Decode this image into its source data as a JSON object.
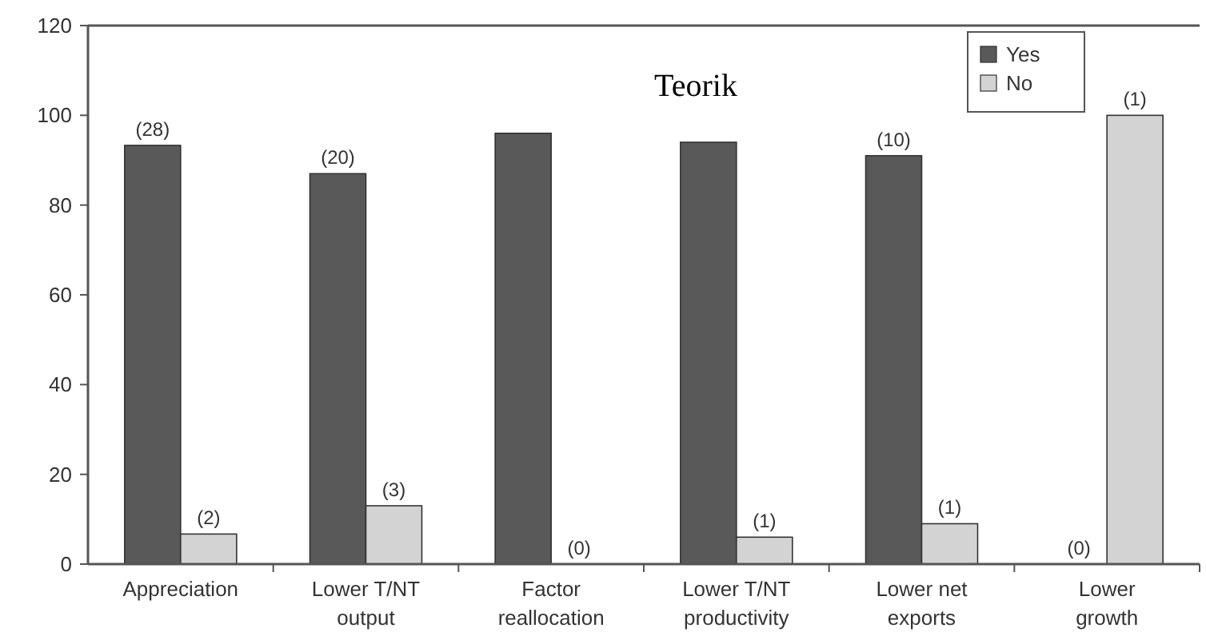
{
  "chart_data": {
    "type": "bar",
    "annotations": [
      "Teorik",
      {
        "text": "(28)",
        "x": "Appreciation",
        "y": 93.3
      },
      {
        "text": "(2)",
        "x": "Appreciation",
        "y": 6.7
      },
      {
        "text": "(20)",
        "x": "Lower T/NT output",
        "y": 87
      },
      {
        "text": "(3)",
        "x": "Lower T/NT output",
        "y": 13
      },
      {
        "text": "(0)",
        "x": "Factor reallocation",
        "y": 0
      },
      {
        "text": "(1)",
        "x": "Lower T/NT productivity",
        "y": 6
      },
      {
        "text": "(10)",
        "x": "Lower net exports",
        "y": 91
      },
      {
        "text": "(1)",
        "x": "Lower net exports",
        "y": 9
      },
      {
        "text": "(0)",
        "x": "Lower growth",
        "y": 0
      },
      {
        "text": "(1)",
        "x": "Lower growth",
        "y": 100
      }
    ],
    "categories": [
      "Appreciation",
      "Lower T/NT output",
      "Factor reallocation",
      "Lower T/NT productivity",
      "Lower net exports",
      "Lower growth"
    ],
    "series": [
      {
        "name": "Yes",
        "color": "#595959",
        "values": [
          93.3,
          87,
          96,
          94,
          91,
          0
        ]
      },
      {
        "name": "No",
        "color": "#d3d3d3",
        "values": [
          6.7,
          13,
          0,
          6,
          9,
          100
        ]
      }
    ],
    "ylim": [
      0,
      120
    ],
    "yticks": [
      0,
      20,
      40,
      60,
      80,
      100,
      120
    ],
    "grid": false,
    "legend": "top right"
  }
}
